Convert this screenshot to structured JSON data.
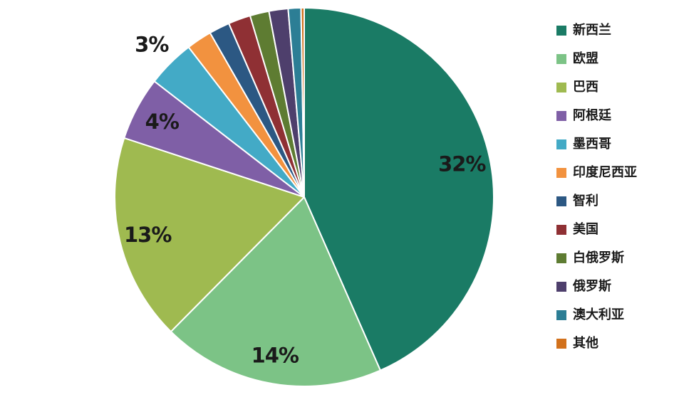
{
  "page": {
    "background_color": "#FFFFFF",
    "label_text_color": "#1A1A1A",
    "slice_border_color": "#FFFFFF"
  },
  "chart_data": {
    "type": "pie",
    "title": "",
    "legend_position": "right",
    "start_angle_deg": 0,
    "direction": "clockwise",
    "labels_shown_for_slices_3pct_and_above": true,
    "series": [
      {
        "name": "新西兰",
        "value": 32,
        "label": "32%",
        "color": "#1A7B65",
        "label_placement": "inside"
      },
      {
        "name": "欧盟",
        "value": 14,
        "label": "14%",
        "color": "#7CC386",
        "label_placement": "inside"
      },
      {
        "name": "巴西",
        "value": 13,
        "label": "13%",
        "color": "#9FBA50",
        "label_placement": "inside"
      },
      {
        "name": "阿根廷",
        "value": 4,
        "label": "4%",
        "color": "#7F5FA6",
        "label_placement": "inside"
      },
      {
        "name": "墨西哥",
        "value": 3,
        "label": "3%",
        "color": "#43AAC6",
        "label_placement": "outside"
      },
      {
        "name": "印度尼西亚",
        "value": 1.6,
        "label": "",
        "color": "#F2923F",
        "label_placement": "none"
      },
      {
        "name": "智利",
        "value": 1.3,
        "label": "",
        "color": "#2C5883",
        "label_placement": "none"
      },
      {
        "name": "美国",
        "value": 1.4,
        "label": "",
        "color": "#8F3034",
        "label_placement": "none"
      },
      {
        "name": "白俄罗斯",
        "value": 1.2,
        "label": "",
        "color": "#5E7C32",
        "label_placement": "none"
      },
      {
        "name": "俄罗斯",
        "value": 1.2,
        "label": "",
        "color": "#4E3F6C",
        "label_placement": "none"
      },
      {
        "name": "澳大利亚",
        "value": 0.8,
        "label": "",
        "color": "#2C7E95",
        "label_placement": "none"
      },
      {
        "name": "其他",
        "value": 0.2,
        "label": "",
        "color": "#D2711C",
        "label_placement": "none"
      }
    ]
  }
}
